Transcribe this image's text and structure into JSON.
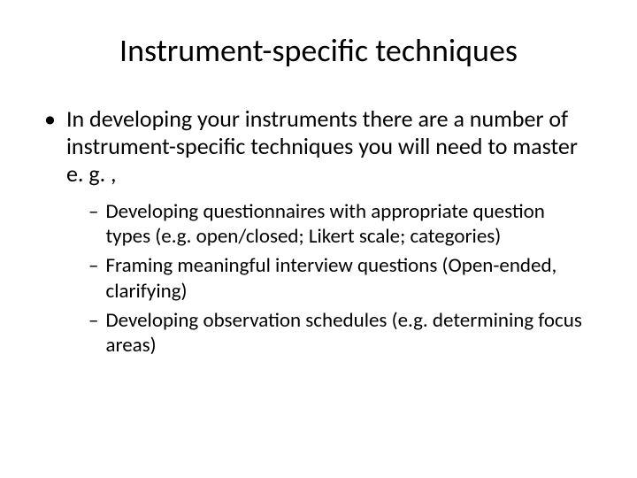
{
  "title": "Instrument-specific techniques",
  "bullets": {
    "main": "In developing your instruments there are a number of instrument-specific techniques you will need to master e. g. ,",
    "subs": [
      "Developing questionnaires with appropriate question types (e.g. open/closed; Likert scale; categories)",
      "Framing meaningful interview questions (Open-ended, clarifying)",
      "Developing observation schedules (e.g. determining focus areas)"
    ]
  },
  "style": {
    "background_color": "#ffffff",
    "text_color": "#000000",
    "title_fontsize": 36,
    "body_fontsize": 26,
    "sub_fontsize": 23,
    "font_family": "Calibri"
  }
}
